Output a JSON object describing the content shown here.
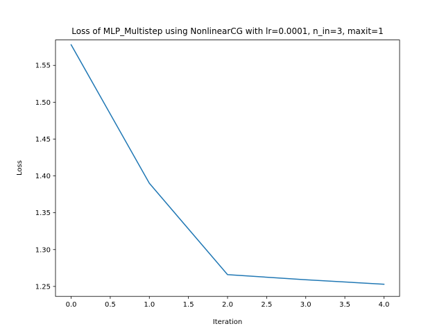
{
  "chart_data": {
    "type": "line",
    "title": "Loss of MLP_Multistep using NonlinearCG with lr=0.0001, n_in=3, maxit=1",
    "xlabel": "Iteration",
    "ylabel": "Loss",
    "xlim": [
      -0.2,
      4.2
    ],
    "ylim": [
      1.2365,
      1.5845
    ],
    "xticks": [
      0.0,
      0.5,
      1.0,
      1.5,
      2.0,
      2.5,
      3.0,
      3.5,
      4.0
    ],
    "xtick_labels": [
      "0.0",
      "0.5",
      "1.0",
      "1.5",
      "2.0",
      "2.5",
      "3.0",
      "3.5",
      "4.0"
    ],
    "yticks": [
      1.25,
      1.3,
      1.35,
      1.4,
      1.45,
      1.5,
      1.55
    ],
    "ytick_labels": [
      "1.25",
      "1.30",
      "1.35",
      "1.40",
      "1.45",
      "1.50",
      "1.55"
    ],
    "grid": false,
    "legend": "none",
    "series": [
      {
        "color": "#1f77b4",
        "x": [
          0,
          1,
          2,
          3,
          4
        ],
        "y": [
          1.578,
          1.39,
          1.266,
          1.259,
          1.253
        ]
      }
    ]
  }
}
